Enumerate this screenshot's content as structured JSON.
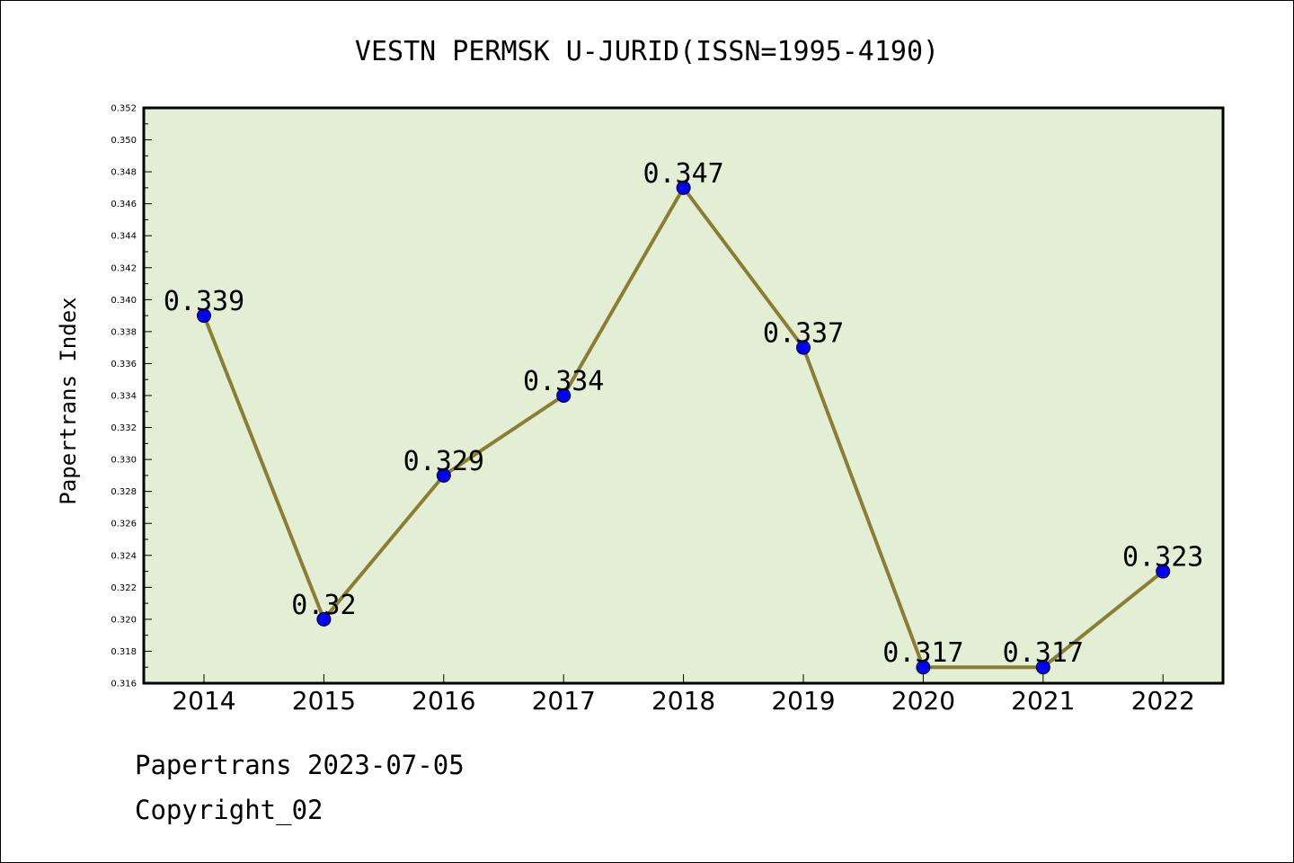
{
  "chart_data": {
    "type": "line",
    "title": "VESTN PERMSK U-JURID(ISSN=1995-4190)",
    "xlabel": "",
    "ylabel": "Papertrans Index",
    "categories": [
      "2014",
      "2015",
      "2016",
      "2017",
      "2018",
      "2019",
      "2020",
      "2021",
      "2022"
    ],
    "values": [
      0.339,
      0.32,
      0.329,
      0.334,
      0.347,
      0.337,
      0.317,
      0.317,
      0.323
    ],
    "data_labels": [
      "0.339",
      "0.32",
      "0.329",
      "0.334",
      "0.347",
      "0.337",
      "0.317",
      "0.317",
      "0.323"
    ],
    "ylim": [
      0.316,
      0.352
    ],
    "yticks": [
      "0.316",
      "0.318",
      "0.320",
      "0.322",
      "0.324",
      "0.326",
      "0.328",
      "0.330",
      "0.332",
      "0.334",
      "0.336",
      "0.338",
      "0.340",
      "0.342",
      "0.344",
      "0.346",
      "0.348",
      "0.350",
      "0.352"
    ],
    "grid": false,
    "legend": "none",
    "colors": {
      "plot_background": "#e2efd5",
      "line": "#8b7d33",
      "marker": "#0000ff",
      "axis": "#000000"
    }
  },
  "footer": {
    "line1": "Papertrans 2023-07-05",
    "line2": "Copyright_02"
  }
}
